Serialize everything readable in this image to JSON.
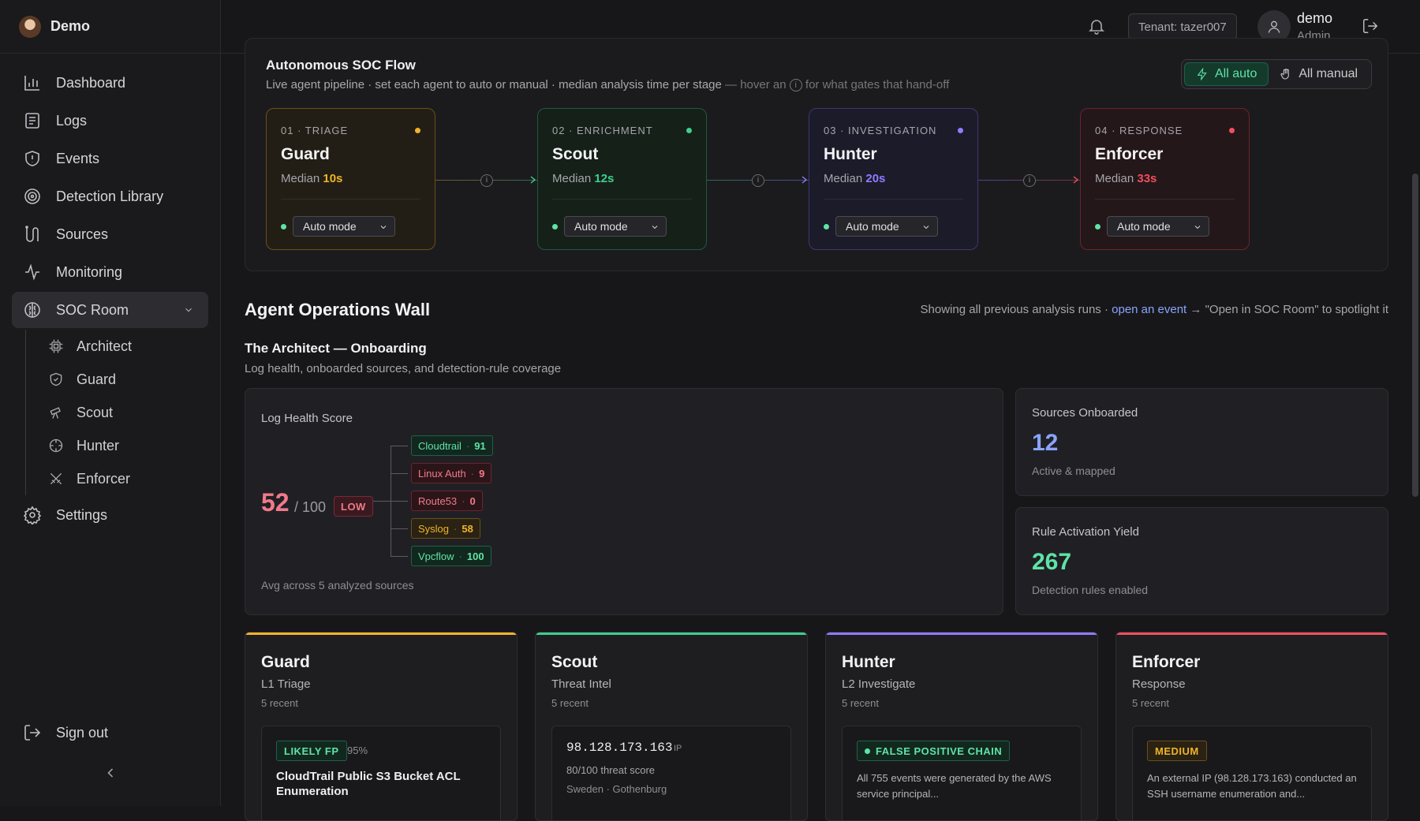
{
  "app": {
    "name": "Demo"
  },
  "sidebar": {
    "items": [
      {
        "label": "Dashboard",
        "icon": "bar-chart-icon"
      },
      {
        "label": "Logs",
        "icon": "logs-icon"
      },
      {
        "label": "Events",
        "icon": "shield-alert-icon"
      },
      {
        "label": "Detection Library",
        "icon": "target-icon"
      },
      {
        "label": "Sources",
        "icon": "sources-icon"
      },
      {
        "label": "Monitoring",
        "icon": "activity-icon"
      },
      {
        "label": "SOC Room",
        "icon": "brain-icon"
      }
    ],
    "sub_items": [
      {
        "label": "Architect",
        "icon": "cpu-icon"
      },
      {
        "label": "Guard",
        "icon": "shield-check-icon"
      },
      {
        "label": "Scout",
        "icon": "telescope-icon"
      },
      {
        "label": "Hunter",
        "icon": "crosshair-icon"
      },
      {
        "label": "Enforcer",
        "icon": "swords-icon"
      }
    ],
    "settings": "Settings",
    "signout": "Sign out"
  },
  "topbar": {
    "tenant": "Tenant: tazer007",
    "user_name": "demo",
    "user_role": "Admin"
  },
  "flow": {
    "title": "Autonomous SOC Flow",
    "subtitle": "Live agent pipeline · set each agent to auto or manual · median analysis time per stage",
    "hint_pre": "— hover an",
    "hint_icon": "i",
    "hint_post": "for what gates that hand-off",
    "all_auto": "All auto",
    "all_manual": "All manual",
    "median_label": "Median",
    "stages": [
      {
        "label": "01 · TRIAGE",
        "name": "Guard",
        "median": "10s",
        "mode": "Auto mode",
        "color": "#f0b429"
      },
      {
        "label": "02 · ENRICHMENT",
        "name": "Scout",
        "median": "12s",
        "mode": "Auto mode",
        "color": "#3ecf8e"
      },
      {
        "label": "03 · INVESTIGATION",
        "name": "Hunter",
        "median": "20s",
        "mode": "Auto mode",
        "color": "#8f7cff"
      },
      {
        "label": "04 · RESPONSE",
        "name": "Enforcer",
        "median": "33s",
        "mode": "Auto mode",
        "color": "#ef4f5f"
      }
    ]
  },
  "wall": {
    "title": "Agent Operations Wall",
    "note_pre": "Showing all previous analysis runs ·",
    "note_link": "open an event",
    "note_post": "→ \"Open in SOC Room\" to spotlight it"
  },
  "architect": {
    "title": "The Architect — Onboarding",
    "subtitle": "Log health, onboarded sources, and detection-rule coverage",
    "log_health": {
      "title": "Log Health Score",
      "score": "52",
      "out_of": "/ 100",
      "grade": "LOW",
      "footer": "Avg across 5 analyzed sources",
      "sources": [
        {
          "name": "Cloudtrail",
          "value": "91",
          "level": "good"
        },
        {
          "name": "Linux Auth",
          "value": "9",
          "level": "bad"
        },
        {
          "name": "Route53",
          "value": "0",
          "level": "bad"
        },
        {
          "name": "Syslog",
          "value": "58",
          "level": "warn"
        },
        {
          "name": "Vpcflow",
          "value": "100",
          "level": "good"
        }
      ]
    },
    "sources_onboarded": {
      "title": "Sources Onboarded",
      "value": "12",
      "sub": "Active & mapped"
    },
    "rule_yield": {
      "title": "Rule Activation Yield",
      "value": "267",
      "sub": "Detection rules enabled"
    }
  },
  "agents": [
    {
      "name": "Guard",
      "role": "L1 Triage",
      "count": "5 recent",
      "color": "#f0b429",
      "tag": "LIKELY FP",
      "confidence": "95%",
      "text": "CloudTrail Public S3 Bucket ACL Enumeration"
    },
    {
      "name": "Scout",
      "role": "Threat Intel",
      "count": "5 recent",
      "color": "#3ecf8e",
      "ip": "98.128.173.163",
      "ip_kind": "IP",
      "threat": "80/100 threat score",
      "location": "Sweden · Gothenburg"
    },
    {
      "name": "Hunter",
      "role": "L2 Investigate",
      "count": "5 recent",
      "color": "#8f7cff",
      "tag": "FALSE POSITIVE CHAIN",
      "text": "All 755 events were generated by the AWS service principal..."
    },
    {
      "name": "Enforcer",
      "role": "Response",
      "count": "5 recent",
      "color": "#ef4f5f",
      "tag": "MEDIUM",
      "text": "An external IP (98.128.173.163) conducted an SSH username enumeration and..."
    }
  ]
}
